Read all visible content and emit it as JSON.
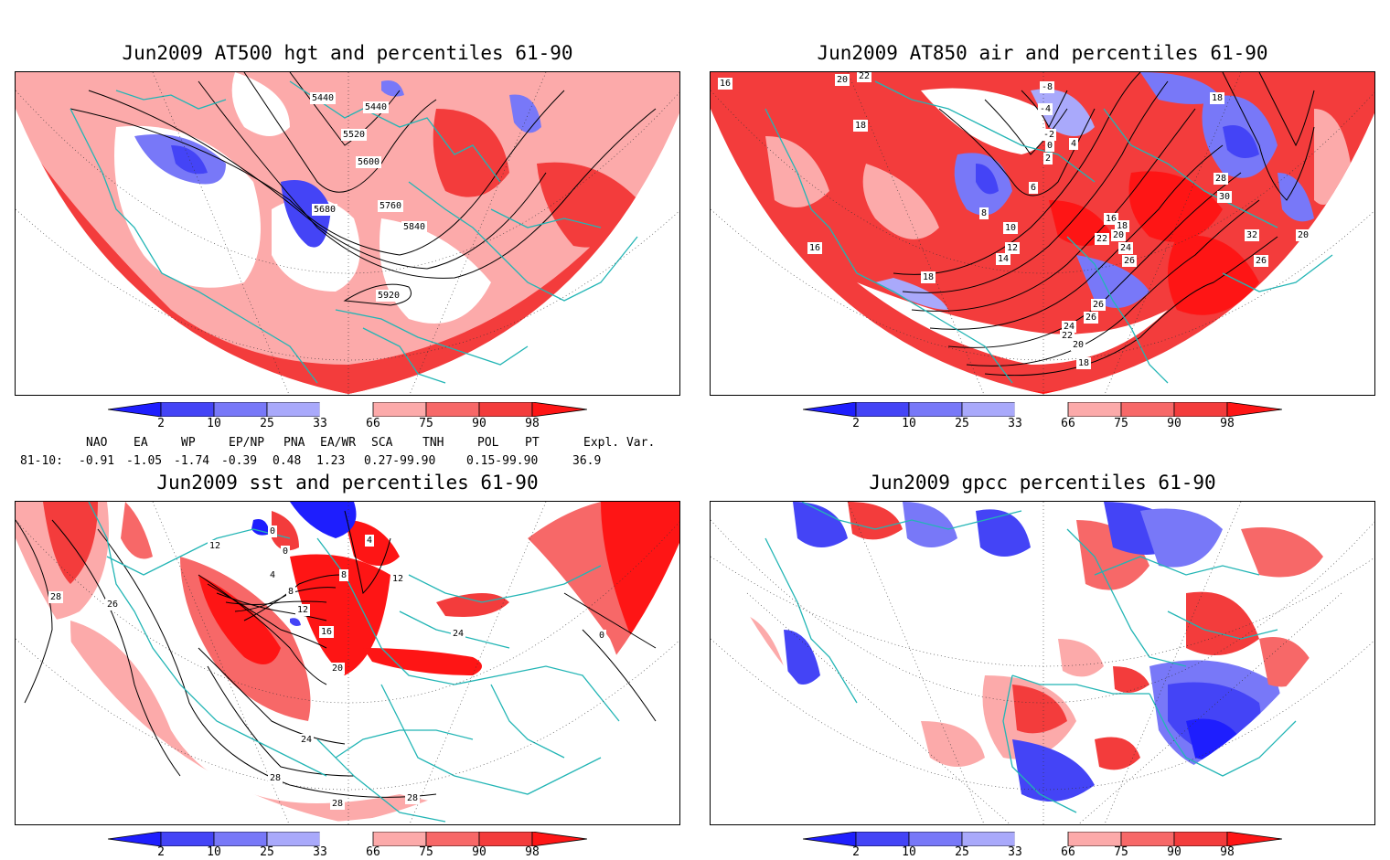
{
  "panels": [
    {
      "title": "Jun2009 AT500 hgt and percentiles 61-90",
      "contour_labels": [
        "5440",
        "5440",
        "5520",
        "5600",
        "5680",
        "5760",
        "5840",
        "5920"
      ]
    },
    {
      "title": "Jun2009 AT850 air and percentiles 61-90",
      "contour_labels": [
        "16",
        "20",
        "22",
        "18",
        "-8",
        "-4",
        "-2",
        "0",
        "2",
        "4",
        "6",
        "8",
        "10",
        "12",
        "14",
        "16",
        "18",
        "20",
        "22",
        "24",
        "26",
        "26",
        "26",
        "24",
        "22",
        "20",
        "18",
        "28",
        "30",
        "32",
        "26",
        "20",
        "18",
        "16",
        "18"
      ]
    },
    {
      "title": "Jun2009 sst and percentiles 61-90",
      "contour_labels": [
        "12",
        "28",
        "26",
        "4",
        "8",
        "12",
        "16",
        "20",
        "24",
        "28",
        "28",
        "28",
        "24",
        "12",
        "8",
        "0",
        "4",
        "0",
        "0"
      ]
    },
    {
      "title": "Jun2009 gpcc percentiles 61-90",
      "contour_labels": []
    }
  ],
  "colorbar": {
    "labels": [
      "2",
      "10",
      "25",
      "33",
      "66",
      "75",
      "90",
      "98"
    ],
    "colors": [
      "#1e1efe",
      "#4444f6",
      "#7878f8",
      "#a9a9fb",
      "#ffffff",
      "#fcaaaa",
      "#f76868",
      "#f33c3c",
      "#fe1515"
    ]
  },
  "indices": {
    "header": [
      "NAO",
      "EA",
      "WP",
      "EP/NP",
      "PNA",
      "EA/WR",
      "SCA",
      "TNH",
      "POL",
      "PT",
      "Expl. Var."
    ],
    "period": "81-10:",
    "values": [
      "-0.91",
      "-1.05",
      "-1.74",
      "-0.39",
      "0.48",
      "1.23",
      "0.27-99.90",
      "",
      "0.15-99.90",
      "",
      "36.9"
    ]
  },
  "colors": {
    "coastline": "#22b5b5",
    "frame": "#000000"
  }
}
